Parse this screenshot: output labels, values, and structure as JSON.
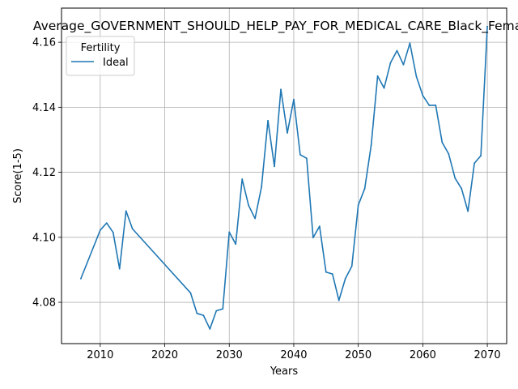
{
  "chart_data": {
    "type": "line",
    "title": "Average_GOVERNMENT_SHOULD_HELP_PAY_FOR_MEDICAL_CARE_Black_Female",
    "xlabel": "Years",
    "ylabel": "Score(1-5)",
    "xlim": [
      2004,
      2073
    ],
    "ylim": [
      4.0673,
      4.1705
    ],
    "xticks": [
      2010,
      2020,
      2030,
      2040,
      2050,
      2060,
      2070
    ],
    "yticks": [
      4.08,
      4.1,
      4.12,
      4.14,
      4.16
    ],
    "ytick_labels": [
      "4.08",
      "4.10",
      "4.12",
      "4.14",
      "4.16"
    ],
    "grid": true,
    "legend": {
      "title": "Fertility",
      "placement": "top-left"
    },
    "series": [
      {
        "name": "Ideal",
        "color": "#1f77b4",
        "x": [
          2007,
          2010,
          2011,
          2012,
          2013,
          2014,
          2015,
          2024,
          2025,
          2026,
          2027,
          2028,
          2029,
          2030,
          2031,
          2032,
          2033,
          2034,
          2035,
          2036,
          2037,
          2038,
          2039,
          2040,
          2041,
          2042,
          2043,
          2044,
          2045,
          2046,
          2047,
          2048,
          2049,
          2050,
          2051,
          2052,
          2053,
          2054,
          2055,
          2056,
          2057,
          2058,
          2059,
          2060,
          2061,
          2062,
          2063,
          2064,
          2065,
          2066,
          2067,
          2068,
          2069,
          2070
        ],
        "y": [
          4.0873,
          4.1022,
          4.1044,
          4.1015,
          4.0903,
          4.1081,
          4.1026,
          4.0829,
          4.0766,
          4.076,
          4.0718,
          4.0774,
          4.078,
          4.1016,
          4.0979,
          4.1179,
          4.1098,
          4.1058,
          4.1155,
          4.1359,
          4.1218,
          4.1455,
          4.1321,
          4.1424,
          4.1254,
          4.1243,
          4.0999,
          4.1034,
          4.0893,
          4.0887,
          4.0806,
          4.0873,
          4.0911,
          4.1099,
          4.115,
          4.1283,
          4.1496,
          4.1459,
          4.1537,
          4.1574,
          4.1531,
          4.1597,
          4.1495,
          4.1436,
          4.1406,
          4.1406,
          4.1292,
          4.1257,
          4.1182,
          4.115,
          4.108,
          4.1228,
          4.1251,
          4.1648
        ]
      }
    ]
  }
}
